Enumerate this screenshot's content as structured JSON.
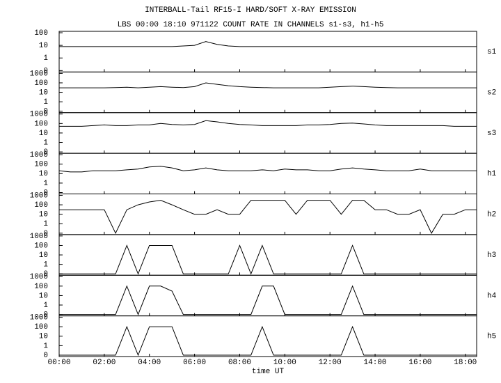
{
  "chart_data": {
    "type": "line",
    "title": "INTERBALL-Tail RF15-I HARD/SOFT X-RAY EMISSION",
    "subtitle": "LBS 00:00 18:10 971122  COUNT RATE IN CHANNELS s1-s3, h1-h5",
    "x_label": "time UT",
    "color": "#000000",
    "xlim": [
      0,
      18.5
    ],
    "xticks": [
      {
        "value": 0,
        "label": "00:00"
      },
      {
        "value": 2,
        "label": "02:00"
      },
      {
        "value": 4,
        "label": "04:00"
      },
      {
        "value": 6,
        "label": "06:00"
      },
      {
        "value": 8,
        "label": "08:00"
      },
      {
        "value": 10,
        "label": "10:00"
      },
      {
        "value": 12,
        "label": "12:00"
      },
      {
        "value": 14,
        "label": "14:00"
      },
      {
        "value": 16,
        "label": "16:00"
      },
      {
        "value": 18,
        "label": "18:00"
      }
    ],
    "x": [
      0,
      0.5,
      1,
      1.5,
      2,
      2.5,
      3,
      3.5,
      4,
      4.5,
      5,
      5.5,
      6,
      6.5,
      7,
      7.5,
      8,
      8.5,
      9,
      9.5,
      10,
      10.5,
      11,
      11.5,
      12,
      12.5,
      13,
      13.5,
      14,
      14.5,
      15,
      15.5,
      16,
      16.5,
      17,
      17.5,
      18,
      18.5
    ],
    "log_y": true,
    "series": [
      {
        "name": "s1",
        "ylim": [
          0,
          100
        ],
        "yticks": [
          0,
          1,
          10,
          100
        ],
        "values": [
          8,
          8,
          8,
          8,
          8,
          8,
          8,
          8,
          8,
          8,
          8,
          9,
          10,
          20,
          12,
          9,
          8,
          8,
          8,
          8,
          8,
          8,
          8,
          8,
          8,
          8,
          8,
          8,
          8,
          8,
          8,
          8,
          8,
          8,
          8,
          8,
          8,
          8
        ]
      },
      {
        "name": "s2",
        "ylim": [
          0,
          1000
        ],
        "yticks": [
          0,
          1,
          10,
          100,
          1000
        ],
        "values": [
          30,
          30,
          30,
          30,
          30,
          32,
          35,
          30,
          35,
          40,
          35,
          32,
          40,
          100,
          70,
          50,
          40,
          35,
          32,
          30,
          30,
          30,
          30,
          30,
          35,
          40,
          45,
          40,
          35,
          32,
          30,
          30,
          30,
          30,
          30,
          30,
          30,
          30
        ]
      },
      {
        "name": "s3",
        "ylim": [
          0,
          1000
        ],
        "yticks": [
          0,
          1,
          10,
          100,
          1000
        ],
        "values": [
          50,
          50,
          50,
          60,
          70,
          60,
          60,
          70,
          70,
          100,
          80,
          70,
          80,
          200,
          150,
          100,
          80,
          70,
          60,
          60,
          60,
          60,
          70,
          70,
          80,
          100,
          110,
          90,
          70,
          60,
          60,
          60,
          60,
          60,
          60,
          50,
          50,
          50
        ]
      },
      {
        "name": "h1",
        "ylim": [
          0,
          1000
        ],
        "yticks": [
          0,
          1,
          10,
          100,
          1000
        ],
        "values": [
          20,
          15,
          15,
          20,
          20,
          20,
          25,
          30,
          50,
          60,
          40,
          20,
          25,
          40,
          25,
          20,
          20,
          20,
          25,
          20,
          30,
          25,
          25,
          20,
          20,
          30,
          40,
          30,
          25,
          20,
          20,
          20,
          30,
          20,
          20,
          20,
          20,
          20
        ]
      },
      {
        "name": "h2",
        "ylim": [
          0,
          1000
        ],
        "yticks": [
          0,
          1,
          10,
          100,
          1000
        ],
        "values": [
          30,
          30,
          30,
          30,
          30,
          0,
          30,
          100,
          200,
          300,
          100,
          30,
          10,
          10,
          30,
          10,
          10,
          300,
          300,
          300,
          300,
          10,
          300,
          300,
          300,
          10,
          300,
          300,
          30,
          30,
          10,
          10,
          30,
          0,
          10,
          10,
          30,
          30
        ]
      },
      {
        "name": "h3",
        "ylim": [
          0,
          1000
        ],
        "yticks": [
          0,
          1,
          10,
          100,
          1000
        ],
        "values": [
          0,
          0,
          0,
          0,
          0,
          0,
          100,
          0,
          100,
          100,
          100,
          0,
          0,
          0,
          0,
          0,
          100,
          0,
          100,
          0,
          0,
          0,
          0,
          0,
          0,
          0,
          100,
          0,
          0,
          0,
          0,
          0,
          0,
          0,
          0,
          0,
          0,
          0
        ]
      },
      {
        "name": "h4",
        "ylim": [
          0,
          1000
        ],
        "yticks": [
          0,
          1,
          10,
          100,
          1000
        ],
        "values": [
          0,
          0,
          0,
          0,
          0,
          0,
          100,
          0,
          100,
          100,
          30,
          0,
          0,
          0,
          0,
          0,
          0,
          0,
          100,
          100,
          0,
          0,
          0,
          0,
          0,
          0,
          100,
          0,
          0,
          0,
          0,
          0,
          0,
          0,
          0,
          0,
          0,
          0
        ]
      },
      {
        "name": "h5",
        "ylim": [
          0,
          1000
        ],
        "yticks": [
          0,
          1,
          10,
          100,
          1000
        ],
        "values": [
          0,
          0,
          0,
          0,
          0,
          0,
          100,
          0,
          100,
          100,
          100,
          0,
          0,
          0,
          0,
          0,
          0,
          0,
          100,
          0,
          0,
          0,
          0,
          0,
          0,
          0,
          100,
          0,
          0,
          0,
          0,
          0,
          0,
          0,
          0,
          0,
          0,
          0
        ]
      }
    ]
  }
}
